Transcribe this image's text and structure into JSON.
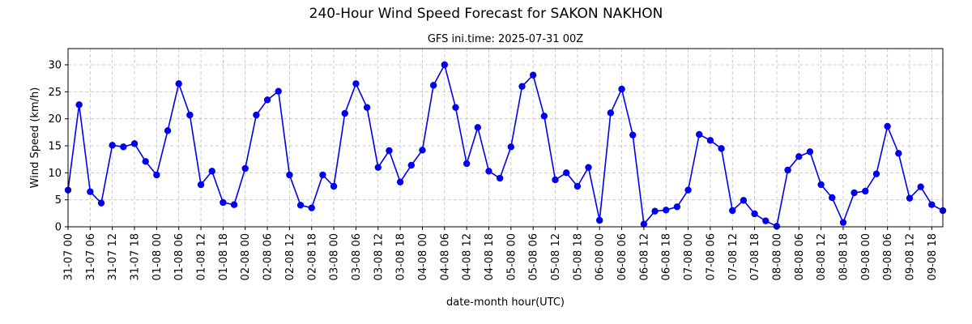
{
  "chart_data": {
    "type": "line",
    "title": "240-Hour Wind Speed Forecast for SAKON NAKHON",
    "subtitle": "GFS ini.time: 2025-07-31 00Z",
    "xlabel": "date-month hour(UTC)",
    "ylabel": "Wind Speed (km/h)",
    "ylim": [
      0,
      33
    ],
    "yticks": [
      0,
      5,
      10,
      15,
      20,
      25,
      30
    ],
    "grid": true,
    "line_color": "#0000ee",
    "x_tick_labels": [
      "31-07 00",
      "31-07 06",
      "31-07 12",
      "31-07 18",
      "01-08 00",
      "01-08 06",
      "01-08 12",
      "01-08 18",
      "02-08 00",
      "02-08 06",
      "02-08 12",
      "02-08 18",
      "03-08 00",
      "03-08 06",
      "03-08 12",
      "03-08 18",
      "04-08 00",
      "04-08 06",
      "04-08 12",
      "04-08 18",
      "05-08 00",
      "05-08 06",
      "05-08 12",
      "05-08 18",
      "06-08 00",
      "06-08 06",
      "06-08 12",
      "06-08 18",
      "07-08 00",
      "07-08 06",
      "07-08 12",
      "07-08 18",
      "08-08 00",
      "08-08 06",
      "08-08 12",
      "08-08 18",
      "09-08 00",
      "09-08 06",
      "09-08 12",
      "09-08 18"
    ],
    "x_hours": [
      0,
      3,
      6,
      9,
      12,
      15,
      18,
      21,
      24,
      27,
      30,
      33,
      36,
      39,
      42,
      45,
      48,
      51,
      54,
      57,
      60,
      63,
      66,
      69,
      72,
      75,
      78,
      81,
      84,
      87,
      90,
      93,
      96,
      99,
      102,
      105,
      108,
      111,
      114,
      117,
      120,
      123,
      126,
      129,
      132,
      135,
      138,
      141,
      144,
      147,
      150,
      153,
      156,
      159,
      162,
      165,
      168,
      171,
      174,
      177,
      180,
      183,
      186,
      189,
      192,
      195,
      198,
      201,
      204,
      207,
      210,
      213,
      216,
      219,
      222,
      225,
      228,
      231,
      234,
      237
    ],
    "series": [
      {
        "values": [
          6.8,
          22.6,
          6.5,
          4.4,
          15.1,
          14.8,
          15.4,
          12.1,
          9.6,
          17.8,
          26.5,
          20.7,
          7.8,
          10.3,
          4.5,
          4.1,
          10.8,
          20.7,
          23.5,
          25.1,
          9.6,
          4.0,
          3.5,
          9.6,
          7.5,
          21.0,
          26.5,
          22.1,
          11.0,
          14.1,
          8.3,
          11.4,
          14.2,
          26.2,
          30.0,
          22.1,
          11.7,
          18.4,
          10.3,
          9.0,
          14.8,
          26.0,
          28.1,
          20.5,
          8.7,
          10.0,
          7.5,
          11.0,
          1.2,
          21.1,
          25.5,
          17.0,
          0.5,
          2.9,
          3.1,
          3.7,
          6.8,
          17.1,
          16.0,
          14.5,
          3.0,
          4.9,
          2.4,
          1.1,
          0.1,
          10.5,
          13.0,
          13.9,
          7.8,
          5.4,
          0.8,
          6.3,
          6.6,
          9.8,
          18.6,
          13.6,
          5.3,
          7.4,
          4.1,
          3.0
        ]
      }
    ]
  }
}
